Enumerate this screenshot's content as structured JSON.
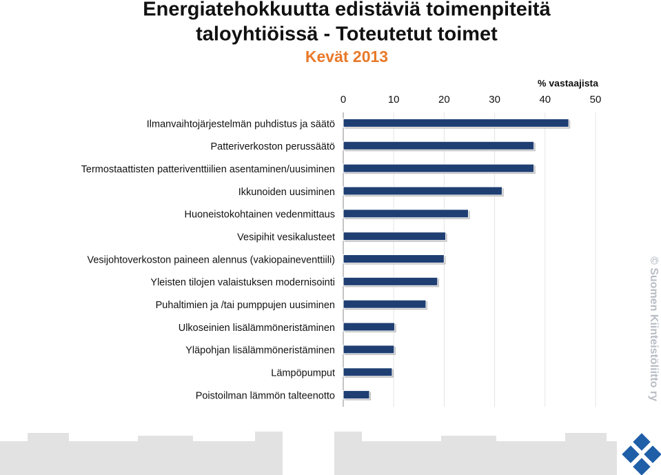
{
  "chart_data": {
    "type": "bar",
    "orientation": "horizontal",
    "title": [
      "Energiatehokkuutta edistäviä toimenpiteitä",
      "taloyhtiöissä - Toteutetut toimet"
    ],
    "subtitle": "Kevät 2013",
    "x_label": "% vastaajista",
    "watermark": "© Suomen Kiinteistöliitto ry",
    "categories": [
      "Ilmanvaihtojärjestelmän puhdistus ja säätö",
      "Patteriverkoston perussäätö",
      "Termostaattisten patteriventtiilien asentaminen/uusiminen",
      "Ikkunoiden uusiminen",
      "Huoneistokohtainen vedenmittaus",
      "Vesipihit vesikalusteet",
      "Vesijohtoverkoston paineen alennus (vakiopaineventtiili)",
      "Yleisten tilojen valaistuksen modernisointi",
      "Puhaltimien ja /tai pumppujen uusiminen",
      "Ulkoseinien lisälämmöneristäminen",
      "Yläpohjan lisälämmöneristäminen",
      "Lämpöpumput",
      "Poistoilman lämmön talteenotto"
    ],
    "values": [
      44.7,
      37.8,
      37.8,
      31.5,
      24.8,
      20.3,
      20.0,
      18.7,
      16.4,
      10.2,
      10.1,
      9.7,
      5.2
    ],
    "color": "#1f3f73",
    "xlim": [
      0,
      50
    ],
    "xticks": [
      0,
      10,
      20,
      30,
      40,
      50
    ],
    "grid": true
  }
}
